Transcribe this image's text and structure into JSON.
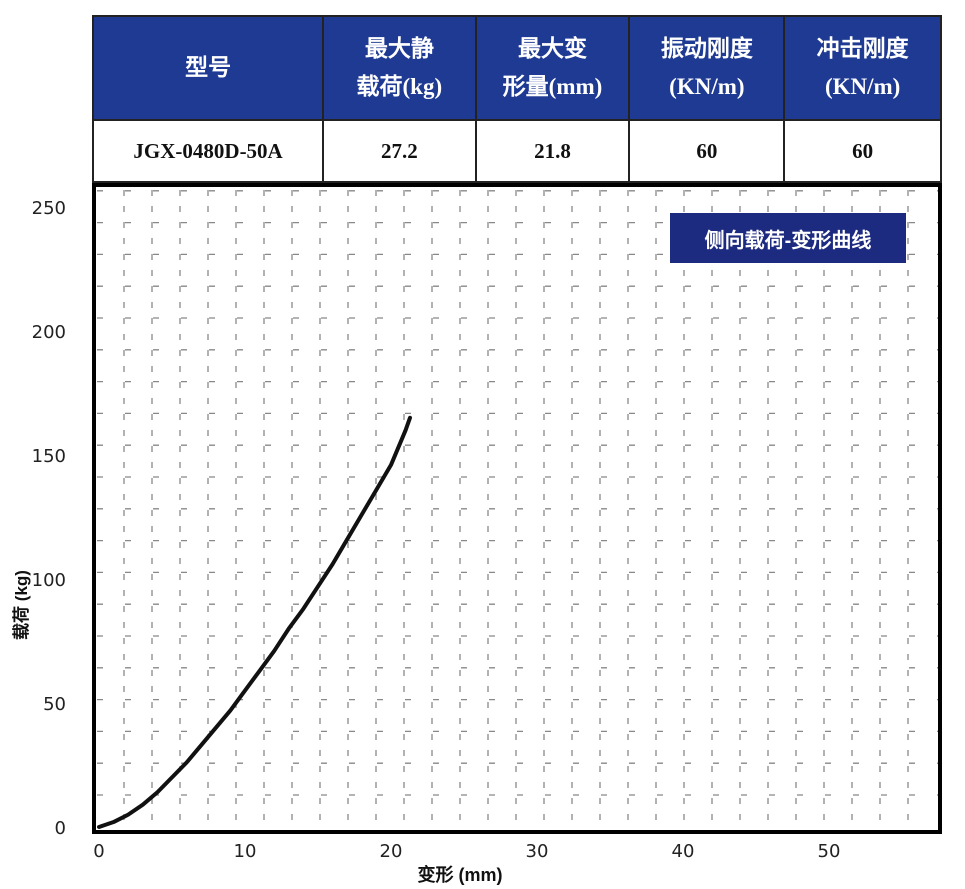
{
  "table": {
    "headers": [
      [
        "型号"
      ],
      [
        "最大静",
        "载荷(kg)"
      ],
      [
        "最大变",
        "形量(mm)"
      ],
      [
        "振动刚度",
        "(KN/m)"
      ],
      [
        "冲击刚度",
        "(KN/m)"
      ]
    ],
    "row": [
      "JGX-0480D-50A",
      "27.2",
      "21.8",
      "60",
      "60"
    ]
  },
  "colors": {
    "header_bg": "#1e3a93",
    "legend_bg": "#1c2a80",
    "curve": "#111111"
  },
  "chart_data": {
    "type": "line",
    "title": "侧向载荷-变形曲线",
    "xlabel": "变形 (mm)",
    "ylabel": "载荷 (kg)",
    "xlim": [
      0,
      58
    ],
    "ylim": [
      0,
      260
    ],
    "xticks": [
      0,
      10,
      20,
      30,
      40,
      50
    ],
    "yticks": [
      0,
      50,
      100,
      150,
      200,
      250
    ],
    "grid": true,
    "legend": "top-right",
    "series": [
      {
        "x": [
          0,
          1,
          2,
          3,
          4,
          5,
          6,
          7,
          8,
          9,
          10,
          11,
          12,
          13,
          14,
          15,
          16,
          17,
          18,
          19,
          20,
          21,
          21.3
        ],
        "y": [
          0,
          2,
          5,
          9,
          14,
          20,
          26,
          33,
          40,
          47,
          55,
          63,
          71,
          80,
          88,
          97,
          106,
          116,
          126,
          136,
          146,
          160,
          165
        ]
      }
    ]
  }
}
